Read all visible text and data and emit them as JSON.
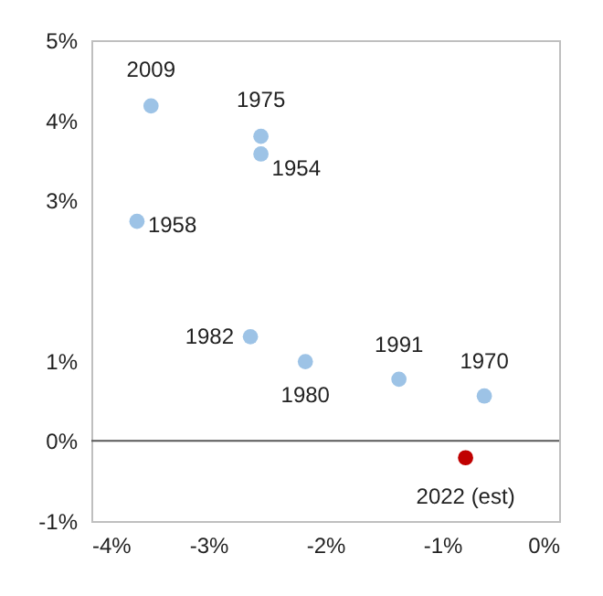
{
  "chart_data": {
    "type": "scatter",
    "series": [
      {
        "color": "#9dc3e6",
        "x": [
          -3.49,
          -2.55,
          -2.55,
          -3.61,
          -2.64,
          -2.17,
          -1.37,
          -0.64
        ],
        "values": [
          4.18,
          3.8,
          3.58,
          2.74,
          1.3,
          0.99,
          0.77,
          0.56
        ]
      },
      {
        "color": "#c00000",
        "x": [
          -0.8
        ],
        "values": [
          -0.21
        ]
      }
    ],
    "annotations": [
      {
        "text": "2009",
        "x": -3.49,
        "y": 4.18
      },
      {
        "text": "1975",
        "x": -2.55,
        "y": 3.8
      },
      {
        "text": "1954",
        "x": -2.55,
        "y": 3.58
      },
      {
        "text": "1958",
        "x": -3.61,
        "y": 2.74
      },
      {
        "text": "1982",
        "x": -2.64,
        "y": 1.3
      },
      {
        "text": "1980",
        "x": -2.17,
        "y": 0.99
      },
      {
        "text": "1991",
        "x": -1.37,
        "y": 0.77
      },
      {
        "text": "1970",
        "x": -0.64,
        "y": 0.56
      },
      {
        "text": "2022 (est)",
        "x": -0.8,
        "y": -0.21
      }
    ],
    "xlim": [
      -4,
      0
    ],
    "xticks": [
      {
        "value": -4,
        "label": "-4%"
      },
      {
        "value": -3,
        "label": "-3%"
      },
      {
        "value": -2,
        "label": "-2%"
      },
      {
        "value": -1,
        "label": "-1%"
      },
      {
        "value": 0,
        "label": "0%"
      }
    ],
    "ylim": [
      -1,
      5
    ],
    "yticks": [
      {
        "value": -1,
        "label": "-1%"
      },
      {
        "value": 0,
        "label": "0%"
      },
      {
        "value": 1,
        "label": "1%"
      },
      {
        "value": 3,
        "label": "3%"
      },
      {
        "value": 4,
        "label": "4%"
      },
      {
        "value": 5,
        "label": "5%"
      }
    ],
    "ref_lines": [
      {
        "axis": "y",
        "value": 0,
        "color": "#595959"
      }
    ],
    "marker": "circle",
    "grid": false
  }
}
